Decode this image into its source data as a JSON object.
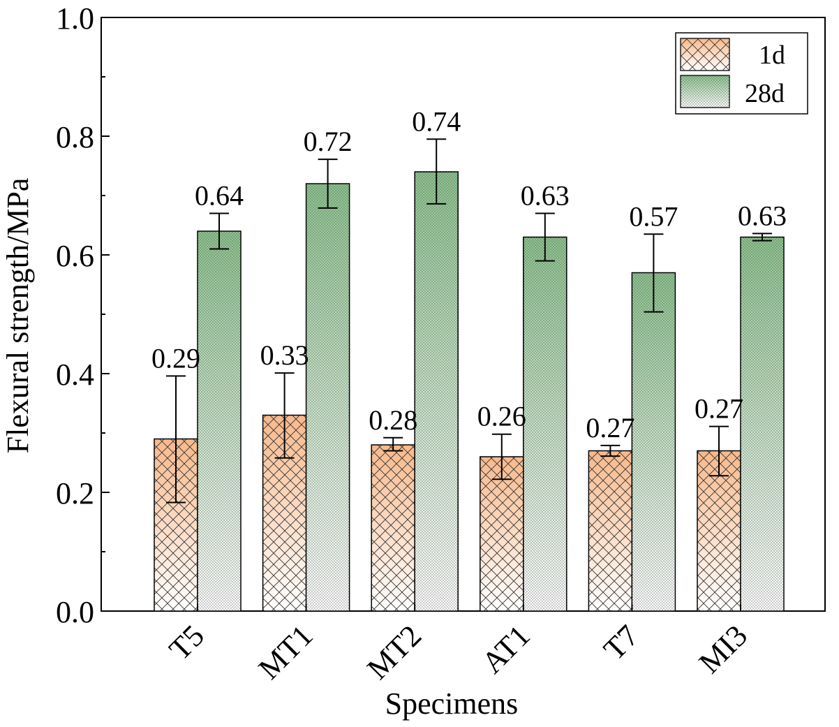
{
  "chart_data": {
    "type": "bar",
    "title": "",
    "xlabel": "Specimens",
    "ylabel": "Flexural strength/MPa",
    "ylim": [
      0,
      1.0
    ],
    "y_ticks": [
      "0.0",
      "0.2",
      "0.4",
      "0.6",
      "0.8",
      "1.0"
    ],
    "categories": [
      "T5",
      "MT1",
      "MT2",
      "AT1",
      "T7",
      "MI3"
    ],
    "grid": false,
    "legend_position": "top-right",
    "series": [
      {
        "name": "1d",
        "values": [
          0.29,
          0.33,
          0.28,
          0.26,
          0.27,
          0.27
        ],
        "labels": [
          "0.29",
          "0.33",
          "0.28",
          "0.26",
          "0.27",
          "0.27"
        ],
        "error_low": [
          0.183,
          0.258,
          0.27,
          0.222,
          0.261,
          0.228
        ],
        "error_high": [
          0.396,
          0.401,
          0.292,
          0.298,
          0.279,
          0.311
        ],
        "color_top": "#f7b98b",
        "color_bottom": "#ffffff"
      },
      {
        "name": "28d",
        "values": [
          0.64,
          0.72,
          0.74,
          0.63,
          0.57,
          0.63
        ],
        "labels": [
          "0.64",
          "0.72",
          "0.74",
          "0.63",
          "0.57",
          "0.63"
        ],
        "error_low": [
          0.61,
          0.679,
          0.686,
          0.59,
          0.504,
          0.624
        ],
        "error_high": [
          0.67,
          0.761,
          0.795,
          0.67,
          0.635,
          0.636
        ],
        "color_top": "#8dc48f",
        "color_bottom": "#ffffff"
      }
    ]
  }
}
